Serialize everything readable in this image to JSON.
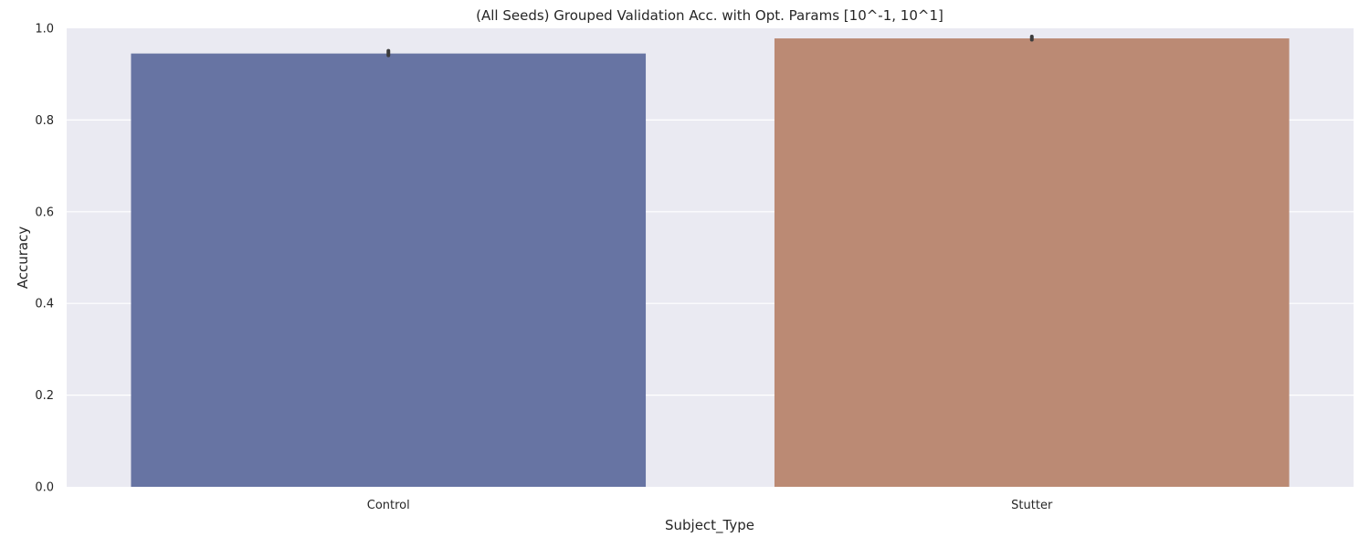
{
  "chart_data": {
    "type": "bar",
    "title": "(All Seeds) Grouped Validation Acc. with Opt. Params [10^-1, 10^1]",
    "xlabel": "Subject_Type",
    "ylabel": "Accuracy",
    "categories": [
      "Control",
      "Stutter"
    ],
    "values": [
      0.945,
      0.978
    ],
    "error_bars": [
      [
        0.941,
        0.951
      ],
      [
        0.975,
        0.982
      ]
    ],
    "colors": [
      "#6774a3",
      "#bb8a74"
    ],
    "ylim": [
      0,
      1.0
    ],
    "yticks": [
      "0.0",
      "0.2",
      "0.4",
      "0.6",
      "0.8",
      "1.0"
    ],
    "grid": true,
    "background": "#eaeaf2",
    "legend": "none"
  }
}
